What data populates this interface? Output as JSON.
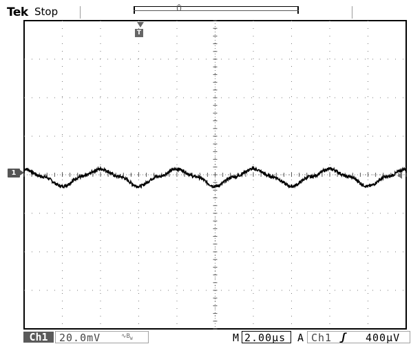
{
  "header": {
    "brand": "Tek",
    "acquisition_state": "Stop"
  },
  "markers": {
    "channel_ground": "1",
    "trigger_position": "T"
  },
  "status_bar": {
    "channel": "Ch1",
    "volts_per_div": "20.0mV",
    "bandwidth_icon": "ac-bw-icon",
    "timebase_prefix": "M",
    "time_per_div": "2.00µs",
    "trigger_prefix": "A",
    "trigger_source": "Ch1",
    "trigger_slope": "rising-edge-icon",
    "trigger_level": "400µV"
  },
  "colors": {
    "trace": "#000000",
    "grid_dot": "#777777",
    "frame": "#000000"
  },
  "chart_data": {
    "type": "line",
    "title": "",
    "xlabel": "",
    "ylabel": "",
    "xlim": [
      0,
      20
    ],
    "ylim": [
      -80,
      80
    ],
    "series": [
      {
        "x": [
          0,
          1,
          2,
          3,
          4,
          5,
          6,
          7,
          8,
          9,
          10,
          11,
          12,
          13,
          14,
          15,
          16,
          17,
          18,
          19,
          20
        ],
        "y": [
          3,
          -1,
          -6,
          -1,
          3,
          -1,
          -6,
          -1,
          3,
          -1,
          -6,
          -1,
          3,
          -1,
          -6,
          -1,
          3,
          -1,
          -6,
          -1,
          3
        ]
      }
    ]
  }
}
